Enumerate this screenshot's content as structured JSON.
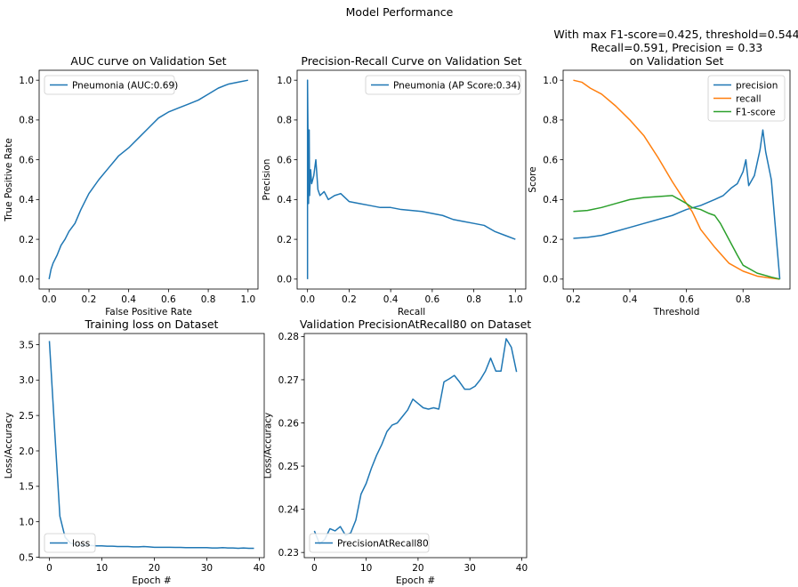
{
  "figure": {
    "suptitle": "Model Performance"
  },
  "colors": {
    "blue": "#1f77b4",
    "orange": "#ff7f0e",
    "green": "#2ca02c"
  },
  "chart_data": [
    {
      "id": "roc",
      "type": "line",
      "title": "AUC curve on Validation Set",
      "xlabel": "False Positive Rate",
      "ylabel": "True Positive Rate",
      "xlim": [
        -0.05,
        1.05
      ],
      "ylim": [
        -0.05,
        1.05
      ],
      "xticks": [
        0.0,
        0.2,
        0.4,
        0.6,
        0.8,
        1.0
      ],
      "xtick_labels": [
        "0.0",
        "0.2",
        "0.4",
        "0.6",
        "0.8",
        "1.0"
      ],
      "yticks": [
        0.0,
        0.2,
        0.4,
        0.6,
        0.8,
        1.0
      ],
      "ytick_labels": [
        "0.0",
        "0.2",
        "0.4",
        "0.6",
        "0.8",
        "1.0"
      ],
      "legend": "upper left",
      "series": [
        {
          "name": "Pneumonia (AUC:0.69)",
          "color": "blue",
          "x": [
            0.0,
            0.01,
            0.02,
            0.04,
            0.06,
            0.08,
            0.1,
            0.13,
            0.16,
            0.2,
            0.25,
            0.3,
            0.35,
            0.4,
            0.45,
            0.5,
            0.55,
            0.6,
            0.65,
            0.7,
            0.75,
            0.8,
            0.85,
            0.9,
            0.95,
            1.0
          ],
          "y": [
            0.0,
            0.05,
            0.08,
            0.12,
            0.17,
            0.2,
            0.24,
            0.28,
            0.35,
            0.43,
            0.5,
            0.56,
            0.62,
            0.66,
            0.71,
            0.76,
            0.81,
            0.84,
            0.86,
            0.88,
            0.9,
            0.93,
            0.96,
            0.98,
            0.99,
            1.0
          ]
        }
      ]
    },
    {
      "id": "pr",
      "type": "line",
      "title": "Precision-Recall Curve on Validation Set",
      "xlabel": "Recall",
      "ylabel": "Precision",
      "xlim": [
        -0.05,
        1.05
      ],
      "ylim": [
        -0.05,
        1.05
      ],
      "xticks": [
        0.0,
        0.2,
        0.4,
        0.6,
        0.8,
        1.0
      ],
      "xtick_labels": [
        "0.0",
        "0.2",
        "0.4",
        "0.6",
        "0.8",
        "1.0"
      ],
      "yticks": [
        0.0,
        0.2,
        0.4,
        0.6,
        0.8,
        1.0
      ],
      "ytick_labels": [
        "0.0",
        "0.2",
        "0.4",
        "0.6",
        "0.8",
        "1.0"
      ],
      "legend": "upper right",
      "series": [
        {
          "name": "Pneumonia (AP Score:0.34)",
          "color": "blue",
          "x": [
            0.0,
            0.0,
            0.005,
            0.008,
            0.01,
            0.015,
            0.02,
            0.03,
            0.04,
            0.05,
            0.06,
            0.08,
            0.1,
            0.13,
            0.16,
            0.2,
            0.25,
            0.3,
            0.35,
            0.4,
            0.45,
            0.5,
            0.55,
            0.6,
            0.65,
            0.7,
            0.75,
            0.8,
            0.85,
            0.9,
            0.95,
            1.0
          ],
          "y": [
            0.0,
            1.0,
            0.38,
            0.75,
            0.42,
            0.55,
            0.48,
            0.52,
            0.6,
            0.45,
            0.42,
            0.44,
            0.4,
            0.42,
            0.43,
            0.39,
            0.38,
            0.37,
            0.36,
            0.36,
            0.35,
            0.345,
            0.34,
            0.33,
            0.32,
            0.3,
            0.29,
            0.28,
            0.27,
            0.24,
            0.22,
            0.2
          ]
        }
      ]
    },
    {
      "id": "threshold",
      "type": "line",
      "title": "With max F1-score=0.425, threshold=0.544\nRecall=0.591, Precision = 0.33\non Validation Set",
      "xlabel": "Threshold",
      "ylabel": "Score",
      "xlim": [
        0.164,
        0.966
      ],
      "ylim": [
        -0.05,
        1.05
      ],
      "xticks": [
        0.2,
        0.4,
        0.6,
        0.8
      ],
      "xtick_labels": [
        "0.2",
        "0.4",
        "0.6",
        "0.8"
      ],
      "yticks": [
        0.0,
        0.2,
        0.4,
        0.6,
        0.8,
        1.0
      ],
      "ytick_labels": [
        "0.0",
        "0.2",
        "0.4",
        "0.6",
        "0.8",
        "1.0"
      ],
      "legend": "upper right",
      "series": [
        {
          "name": "precision",
          "color": "blue",
          "x": [
            0.2,
            0.25,
            0.3,
            0.35,
            0.4,
            0.45,
            0.5,
            0.55,
            0.6,
            0.65,
            0.7,
            0.73,
            0.76,
            0.78,
            0.8,
            0.81,
            0.82,
            0.84,
            0.86,
            0.87,
            0.88,
            0.9,
            0.93
          ],
          "y": [
            0.205,
            0.21,
            0.22,
            0.24,
            0.26,
            0.28,
            0.3,
            0.32,
            0.35,
            0.37,
            0.4,
            0.42,
            0.46,
            0.48,
            0.54,
            0.6,
            0.47,
            0.52,
            0.65,
            0.75,
            0.64,
            0.5,
            0.0
          ]
        },
        {
          "name": "recall",
          "color": "orange",
          "x": [
            0.2,
            0.23,
            0.26,
            0.3,
            0.35,
            0.4,
            0.45,
            0.5,
            0.55,
            0.6,
            0.62,
            0.65,
            0.7,
            0.75,
            0.8,
            0.85,
            0.9,
            0.93
          ],
          "y": [
            1.0,
            0.99,
            0.96,
            0.93,
            0.87,
            0.8,
            0.72,
            0.61,
            0.49,
            0.38,
            0.34,
            0.25,
            0.16,
            0.08,
            0.04,
            0.015,
            0.005,
            0.0
          ]
        },
        {
          "name": "F1-score",
          "color": "green",
          "x": [
            0.2,
            0.25,
            0.3,
            0.35,
            0.4,
            0.45,
            0.5,
            0.55,
            0.6,
            0.62,
            0.65,
            0.68,
            0.7,
            0.72,
            0.75,
            0.78,
            0.8,
            0.85,
            0.9,
            0.93
          ],
          "y": [
            0.34,
            0.345,
            0.36,
            0.38,
            0.4,
            0.41,
            0.415,
            0.42,
            0.38,
            0.36,
            0.35,
            0.33,
            0.32,
            0.28,
            0.2,
            0.12,
            0.07,
            0.03,
            0.01,
            0.0
          ]
        }
      ]
    },
    {
      "id": "loss",
      "type": "line",
      "title": "Training loss on Dataset",
      "xlabel": "Epoch #",
      "ylabel": "Loss/Accuracy",
      "xlim": [
        -1.95,
        40.95
      ],
      "ylim": [
        0.4935,
        3.6565
      ],
      "xticks": [
        0,
        10,
        20,
        30,
        40
      ],
      "xtick_labels": [
        "0",
        "10",
        "20",
        "30",
        "40"
      ],
      "yticks": [
        0.5,
        1.0,
        1.5,
        2.0,
        2.5,
        3.0,
        3.5
      ],
      "ytick_labels": [
        "0.5",
        "1.0",
        "1.5",
        "2.0",
        "2.5",
        "3.0",
        "3.5"
      ],
      "legend": "lower left",
      "series": [
        {
          "name": "loss",
          "color": "blue",
          "x": [
            0,
            1,
            2,
            3,
            4,
            5,
            6,
            7,
            8,
            9,
            10,
            11,
            12,
            13,
            14,
            15,
            16,
            17,
            18,
            19,
            20,
            21,
            22,
            23,
            24,
            25,
            26,
            27,
            28,
            29,
            30,
            31,
            32,
            33,
            34,
            35,
            36,
            37,
            38,
            39
          ],
          "y": [
            3.55,
            2.3,
            1.08,
            0.78,
            0.7,
            0.68,
            0.67,
            0.67,
            0.665,
            0.66,
            0.66,
            0.655,
            0.655,
            0.65,
            0.65,
            0.65,
            0.645,
            0.645,
            0.65,
            0.645,
            0.64,
            0.64,
            0.64,
            0.64,
            0.638,
            0.638,
            0.635,
            0.635,
            0.635,
            0.635,
            0.635,
            0.63,
            0.63,
            0.635,
            0.63,
            0.63,
            0.625,
            0.63,
            0.625,
            0.625
          ]
        }
      ]
    },
    {
      "id": "par80",
      "type": "line",
      "title": "Validation PrecisionAtRecall80 on Dataset",
      "xlabel": "Epoch #",
      "ylabel": "Loss/Accuracy",
      "xlim": [
        -1.95,
        40.95
      ],
      "ylim": [
        0.2288,
        0.2807
      ],
      "xticks": [
        0,
        10,
        20,
        30,
        40
      ],
      "xtick_labels": [
        "0",
        "10",
        "20",
        "30",
        "40"
      ],
      "yticks": [
        0.23,
        0.24,
        0.25,
        0.26,
        0.27,
        0.28
      ],
      "ytick_labels": [
        "0.23",
        "0.24",
        "0.25",
        "0.26",
        "0.27",
        "0.28"
      ],
      "legend": "lower left",
      "series": [
        {
          "name": "PrecisionAtRecall80",
          "color": "blue",
          "x": [
            0,
            1,
            2,
            3,
            4,
            5,
            6,
            7,
            8,
            9,
            10,
            11,
            12,
            13,
            14,
            15,
            16,
            17,
            18,
            19,
            20,
            21,
            22,
            23,
            24,
            25,
            26,
            27,
            28,
            29,
            30,
            31,
            32,
            33,
            34,
            35,
            36,
            37,
            38,
            39
          ],
          "y": [
            0.235,
            0.232,
            0.233,
            0.2355,
            0.235,
            0.236,
            0.234,
            0.2345,
            0.2375,
            0.2435,
            0.246,
            0.2495,
            0.2525,
            0.255,
            0.258,
            0.2595,
            0.26,
            0.2615,
            0.263,
            0.2655,
            0.2645,
            0.2635,
            0.2632,
            0.2635,
            0.2632,
            0.2695,
            0.2702,
            0.271,
            0.2695,
            0.2678,
            0.2678,
            0.2685,
            0.27,
            0.272,
            0.275,
            0.272,
            0.272,
            0.2795,
            0.2775,
            0.2718
          ]
        }
      ]
    }
  ]
}
